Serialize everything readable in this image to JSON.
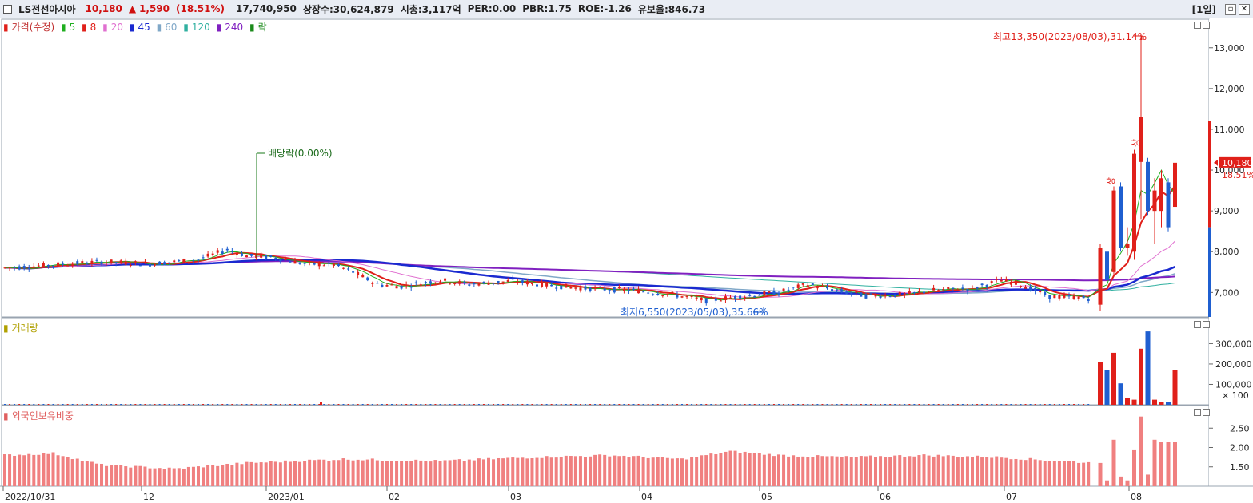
{
  "header": {
    "stock_name": "LS전선아시아",
    "price": "10,180",
    "change_arrow": "▲",
    "change": "1,590",
    "change_pct": "(18.51%)",
    "volume": "17,740,950",
    "listed": "상장수:30,624,879",
    "mktcap": "시총:3,117억",
    "per": "PER:0.00",
    "pbr": "PBR:1.75",
    "roe": "ROE:-1.26",
    "reserve": "유보율:846.73",
    "period": "[1일]"
  },
  "colors": {
    "up": "#e0201a",
    "down": "#1f5fd0",
    "ma5": "#1fae1f",
    "ma8": "#e0201a",
    "ma20": "#e070d0",
    "ma45": "#1a2ad0",
    "ma60": "#80a8c8",
    "ma120": "#30b0a0",
    "ma240": "#8020c0"
  },
  "price_legend": {
    "label": "가격(수정)",
    "ma5": "5",
    "ma8": "8",
    "ma20": "20",
    "ma45": "45",
    "ma60": "60",
    "ma120": "120",
    "ma240": "240",
    "ex": "락"
  },
  "volume_legend": "거래량",
  "foreign_legend": "외국인보유비중",
  "annotations": {
    "high": "최고13,350(2023/08/03),31.14%",
    "low": "최저6,550(2023/05/03),35.66%",
    "dividend": "배당락(0.00%)",
    "upper1": "상",
    "upper2": "상",
    "current_price": "10,180",
    "current_pct": "18.51%"
  },
  "chart_data": [
    {
      "type": "candlestick",
      "y_ticks": [
        "13,000",
        "12,000",
        "11,000",
        "10,000",
        "9,000",
        "8,000",
        "7,000"
      ],
      "ylim": [
        6400,
        13700
      ],
      "x_ticks": [
        "2022/10/31",
        "12",
        "2023/01",
        "02",
        "03",
        "04",
        "05",
        "06",
        "07",
        "08"
      ],
      "candles_late": [
        {
          "o": 6700,
          "h": 8200,
          "l": 6550,
          "c": 8100
        },
        {
          "o": 8000,
          "h": 9100,
          "l": 7000,
          "c": 7300
        },
        {
          "o": 7500,
          "h": 9600,
          "l": 7400,
          "c": 9500
        },
        {
          "o": 9600,
          "h": 9700,
          "l": 8000,
          "c": 8100
        },
        {
          "o": 8100,
          "h": 8600,
          "l": 7900,
          "c": 8200
        },
        {
          "o": 8000,
          "h": 10500,
          "l": 7800,
          "c": 10400
        },
        {
          "o": 10200,
          "h": 13350,
          "l": 8800,
          "c": 11300
        },
        {
          "o": 10200,
          "h": 10300,
          "l": 8900,
          "c": 9000
        },
        {
          "o": 9000,
          "h": 9800,
          "l": 8200,
          "c": 9500
        },
        {
          "o": 9000,
          "h": 10000,
          "l": 8600,
          "c": 9800
        },
        {
          "o": 9700,
          "h": 9800,
          "l": 8500,
          "c": 8600
        },
        {
          "o": 9100,
          "h": 10950,
          "l": 9000,
          "c": 10180
        }
      ]
    },
    {
      "type": "bar",
      "name": "거래량",
      "y_ticks": [
        "300,000",
        "200,000",
        "100,000"
      ],
      "unit": "× 100",
      "ylim": [
        0,
        380000
      ],
      "values_late": [
        210000,
        170000,
        255000,
        105000,
        35000,
        25000,
        275000,
        360000,
        25000,
        15000,
        15000,
        170000
      ]
    },
    {
      "type": "bar",
      "name": "외국인보유비중",
      "y_ticks": [
        "2.50",
        "2.00",
        "1.50"
      ],
      "ylim": [
        1.0,
        3.0
      ],
      "values_late": [
        1.6,
        1.15,
        2.2,
        1.25,
        1.15,
        1.95,
        2.8,
        1.3,
        2.2,
        2.15,
        2.15,
        2.15
      ]
    }
  ]
}
